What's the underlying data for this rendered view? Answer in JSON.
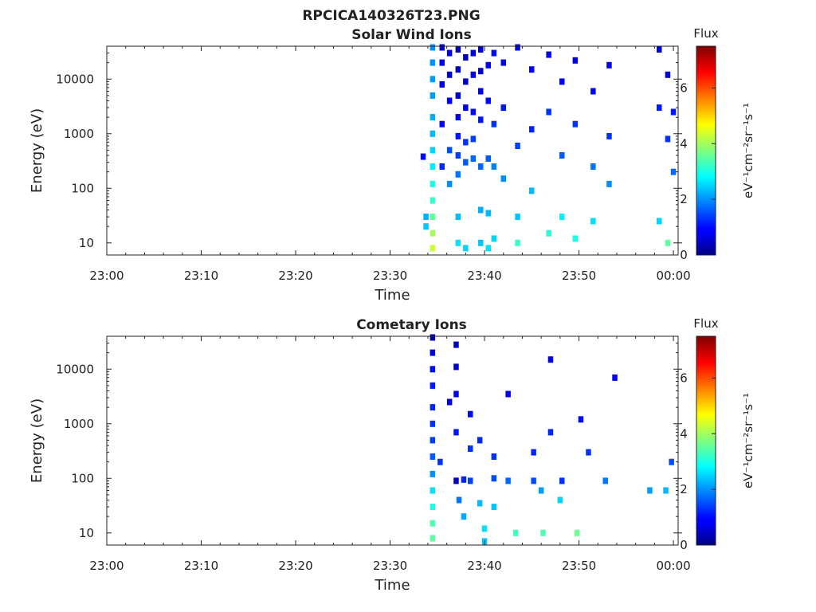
{
  "figure": {
    "title": "RPCICA140326T23.PNG"
  },
  "chart_data": [
    {
      "type": "heatmap",
      "title": "Solar Wind Ions",
      "xlabel": "Time",
      "ylabel": "Energy (eV)",
      "x_tick_labels": [
        "23:00",
        "23:10",
        "23:20",
        "23:30",
        "23:40",
        "23:50",
        "00:00"
      ],
      "x_range_minutes": [
        0,
        60.5
      ],
      "y_scale": "log",
      "y_tick_labels": [
        "10",
        "100",
        "1000",
        "10000"
      ],
      "y_tick_values": [
        10,
        100,
        1000,
        10000
      ],
      "y_range": [
        6,
        40000
      ],
      "colorbar": {
        "title": "Flux",
        "label": "eV⁻¹cm⁻²sr⁻¹s⁻¹",
        "tick_labels": [
          "0",
          "2",
          "4",
          "6"
        ],
        "range": [
          0,
          7.5
        ],
        "colormap": "jet"
      },
      "cells": [
        [
          34.5,
          38000,
          2.0
        ],
        [
          34.5,
          20000,
          2.0
        ],
        [
          34.5,
          10000,
          2.1
        ],
        [
          34.5,
          5000,
          2.1
        ],
        [
          34.5,
          2000,
          2.2
        ],
        [
          34.5,
          1000,
          2.3
        ],
        [
          34.5,
          500,
          2.5
        ],
        [
          34.5,
          250,
          2.7
        ],
        [
          34.5,
          120,
          3.0
        ],
        [
          34.5,
          60,
          3.2
        ],
        [
          34.5,
          30,
          3.5
        ],
        [
          34.5,
          15,
          4.0
        ],
        [
          34.5,
          8,
          4.3
        ],
        [
          33.8,
          30,
          2.2
        ],
        [
          33.8,
          20,
          2.4
        ],
        [
          33.5,
          380,
          1.0
        ],
        [
          35.5,
          38000,
          0.6
        ],
        [
          35.5,
          20000,
          0.8
        ],
        [
          35.5,
          8000,
          0.7
        ],
        [
          35.5,
          1500,
          1.0
        ],
        [
          35.5,
          250,
          1.2
        ],
        [
          36.3,
          30000,
          0.8
        ],
        [
          36.3,
          12000,
          0.6
        ],
        [
          36.3,
          4000,
          0.9
        ],
        [
          36.3,
          500,
          1.5
        ],
        [
          36.3,
          120,
          2.0
        ],
        [
          37.2,
          35000,
          0.4
        ],
        [
          37.2,
          15000,
          0.5
        ],
        [
          37.2,
          5000,
          0.6
        ],
        [
          37.2,
          2000,
          0.8
        ],
        [
          37.2,
          900,
          1.1
        ],
        [
          37.2,
          400,
          1.4
        ],
        [
          37.2,
          180,
          1.8
        ],
        [
          37.2,
          30,
          2.3
        ],
        [
          37.2,
          10,
          2.6
        ],
        [
          38.0,
          25000,
          0.5
        ],
        [
          38.0,
          9000,
          0.6
        ],
        [
          38.0,
          3000,
          0.9
        ],
        [
          38.0,
          700,
          1.3
        ],
        [
          38.0,
          300,
          1.6
        ],
        [
          38.0,
          8,
          2.5
        ],
        [
          38.8,
          30000,
          0.7
        ],
        [
          38.8,
          12000,
          0.8
        ],
        [
          38.8,
          2500,
          1.0
        ],
        [
          38.8,
          800,
          1.4
        ],
        [
          38.8,
          350,
          1.7
        ],
        [
          39.6,
          35000,
          0.5
        ],
        [
          39.6,
          14000,
          0.6
        ],
        [
          39.6,
          6000,
          0.7
        ],
        [
          39.6,
          1800,
          1.1
        ],
        [
          39.6,
          250,
          1.7
        ],
        [
          39.6,
          40,
          2.2
        ],
        [
          39.6,
          10,
          2.4
        ],
        [
          40.4,
          18000,
          0.9
        ],
        [
          40.4,
          4000,
          1.0
        ],
        [
          40.4,
          350,
          1.6
        ],
        [
          40.4,
          35,
          2.3
        ],
        [
          40.4,
          8,
          2.6
        ],
        [
          41.0,
          30000,
          1.0
        ],
        [
          41.0,
          1500,
          1.3
        ],
        [
          41.0,
          250,
          1.9
        ],
        [
          41.0,
          12,
          2.5
        ],
        [
          42.0,
          20000,
          0.8
        ],
        [
          42.0,
          3000,
          1.1
        ],
        [
          42.0,
          150,
          2.0
        ],
        [
          43.5,
          38000,
          0.7
        ],
        [
          43.5,
          600,
          1.4
        ],
        [
          43.5,
          30,
          2.4
        ],
        [
          43.5,
          10,
          3.2
        ],
        [
          45.0,
          15000,
          0.9
        ],
        [
          45.0,
          1200,
          1.2
        ],
        [
          45.0,
          90,
          2.3
        ],
        [
          46.8,
          28000,
          0.8
        ],
        [
          46.8,
          2500,
          1.3
        ],
        [
          46.8,
          15,
          3.1
        ],
        [
          48.2,
          9000,
          0.9
        ],
        [
          48.2,
          400,
          1.6
        ],
        [
          48.2,
          30,
          2.7
        ],
        [
          49.6,
          22000,
          0.7
        ],
        [
          49.6,
          1500,
          1.3
        ],
        [
          49.6,
          12,
          3.0
        ],
        [
          51.5,
          6000,
          0.9
        ],
        [
          51.5,
          250,
          1.8
        ],
        [
          51.5,
          25,
          2.6
        ],
        [
          53.2,
          18000,
          0.8
        ],
        [
          53.2,
          900,
          1.3
        ],
        [
          53.2,
          120,
          2.0
        ],
        [
          58.5,
          35000,
          0.6
        ],
        [
          58.5,
          3000,
          1.1
        ],
        [
          58.5,
          25,
          2.5
        ],
        [
          59.4,
          12000,
          0.7
        ],
        [
          59.4,
          800,
          1.3
        ],
        [
          59.4,
          10,
          3.5
        ],
        [
          60.0,
          2500,
          1.1
        ],
        [
          60.0,
          200,
          1.7
        ]
      ]
    },
    {
      "type": "heatmap",
      "title": "Cometary Ions",
      "xlabel": "Time",
      "ylabel": "Energy (eV)",
      "x_tick_labels": [
        "23:00",
        "23:10",
        "23:20",
        "23:30",
        "23:40",
        "23:50",
        "00:00"
      ],
      "x_range_minutes": [
        0,
        60.5
      ],
      "y_scale": "log",
      "y_tick_labels": [
        "10",
        "100",
        "1000",
        "10000"
      ],
      "y_tick_values": [
        10,
        100,
        1000,
        10000
      ],
      "y_range": [
        6,
        40000
      ],
      "colorbar": {
        "title": "Flux",
        "label": "eV⁻¹cm⁻²sr⁻¹s⁻¹",
        "tick_labels": [
          "0",
          "2",
          "4",
          "6"
        ],
        "range": [
          0,
          7.5
        ],
        "colormap": "jet"
      },
      "cells": [
        [
          34.5,
          38000,
          0.4
        ],
        [
          34.5,
          20000,
          0.7
        ],
        [
          34.5,
          10000,
          1.0
        ],
        [
          34.5,
          5000,
          1.1
        ],
        [
          34.5,
          2000,
          1.2
        ],
        [
          34.5,
          1000,
          1.3
        ],
        [
          34.5,
          500,
          1.4
        ],
        [
          34.5,
          250,
          1.6
        ],
        [
          34.5,
          120,
          2.0
        ],
        [
          34.5,
          60,
          2.6
        ],
        [
          34.5,
          30,
          3.0
        ],
        [
          34.5,
          15,
          3.4
        ],
        [
          34.5,
          8,
          3.5
        ],
        [
          35.3,
          200,
          1.3
        ],
        [
          36.3,
          2500,
          0.7
        ],
        [
          37.0,
          28000,
          0.5
        ],
        [
          37.0,
          11000,
          0.6
        ],
        [
          37.0,
          3500,
          0.8
        ],
        [
          37.0,
          700,
          1.1
        ],
        [
          37.0,
          90,
          0.4
        ],
        [
          37.3,
          40,
          1.8
        ],
        [
          37.8,
          95,
          1.2
        ],
        [
          37.8,
          20,
          2.2
        ],
        [
          38.5,
          1500,
          1.0
        ],
        [
          38.5,
          350,
          1.3
        ],
        [
          38.5,
          90,
          1.4
        ],
        [
          39.5,
          500,
          1.2
        ],
        [
          39.5,
          35,
          2.3
        ],
        [
          40.0,
          12,
          2.6
        ],
        [
          40.0,
          7,
          2.4
        ],
        [
          41.0,
          250,
          1.3
        ],
        [
          41.0,
          100,
          1.5
        ],
        [
          41.0,
          30,
          2.4
        ],
        [
          42.5,
          3500,
          0.9
        ],
        [
          42.5,
          90,
          1.7
        ],
        [
          43.3,
          10,
          3.3
        ],
        [
          45.2,
          300,
          1.2
        ],
        [
          45.2,
          90,
          1.5
        ],
        [
          46.0,
          60,
          2.1
        ],
        [
          46.2,
          10,
          3.4
        ],
        [
          47.0,
          15000,
          0.8
        ],
        [
          47.0,
          700,
          1.2
        ],
        [
          48.0,
          40,
          2.5
        ],
        [
          48.2,
          90,
          1.3
        ],
        [
          49.8,
          10,
          3.6
        ],
        [
          50.2,
          1200,
          1.0
        ],
        [
          51.0,
          300,
          1.3
        ],
        [
          52.8,
          90,
          1.8
        ],
        [
          53.8,
          7000,
          0.9
        ],
        [
          57.5,
          60,
          2.1
        ],
        [
          59.2,
          60,
          2.3
        ],
        [
          59.8,
          200,
          1.5
        ]
      ]
    }
  ]
}
